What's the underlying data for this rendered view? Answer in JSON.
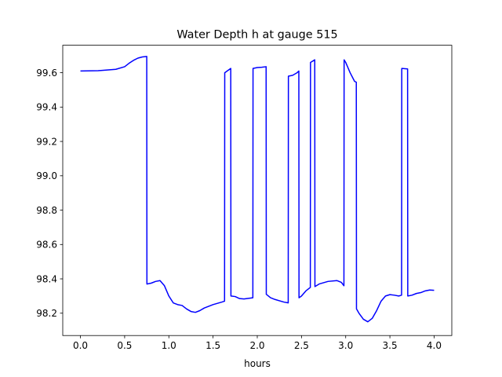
{
  "chart_data": {
    "type": "line",
    "title": "Water Depth h at gauge 515",
    "xlabel": "hours",
    "ylabel": "",
    "xlim": [
      -0.2,
      4.2
    ],
    "ylim": [
      98.07,
      99.76
    ],
    "x_ticks": [
      0.0,
      0.5,
      1.0,
      1.5,
      2.0,
      2.5,
      3.0,
      3.5,
      4.0
    ],
    "x_tick_labels": [
      "0.0",
      "0.5",
      "1.0",
      "1.5",
      "2.0",
      "2.5",
      "3.0",
      "3.5",
      "4.0"
    ],
    "y_ticks": [
      98.2,
      98.4,
      98.6,
      98.8,
      99.0,
      99.2,
      99.4,
      99.6
    ],
    "y_tick_labels": [
      "98.2",
      "98.4",
      "98.6",
      "98.8",
      "99.0",
      "99.2",
      "99.4",
      "99.6"
    ],
    "grid": false,
    "series": [
      {
        "color": "#0000ff",
        "x": [
          0.0,
          0.2,
          0.4,
          0.5,
          0.55,
          0.6,
          0.65,
          0.7,
          0.75,
          0.752,
          0.8,
          0.85,
          0.9,
          0.95,
          1.0,
          1.05,
          1.1,
          1.15,
          1.2,
          1.25,
          1.3,
          1.35,
          1.4,
          1.5,
          1.6,
          1.63,
          1.632,
          1.7,
          1.702,
          1.75,
          1.8,
          1.85,
          1.95,
          1.952,
          2.0,
          2.05,
          2.1,
          2.102,
          2.15,
          2.2,
          2.3,
          2.35,
          2.352,
          2.4,
          2.45,
          2.47,
          2.472,
          2.5,
          2.55,
          2.6,
          2.602,
          2.65,
          2.652,
          2.7,
          2.8,
          2.9,
          2.95,
          2.98,
          2.982,
          3.0,
          3.05,
          3.1,
          3.12,
          3.122,
          3.15,
          3.2,
          3.25,
          3.3,
          3.35,
          3.4,
          3.45,
          3.5,
          3.55,
          3.6,
          3.632,
          3.634,
          3.7,
          3.702,
          3.75,
          3.8,
          3.85,
          3.9,
          3.95,
          4.0
        ],
        "y": [
          99.61,
          99.612,
          99.62,
          99.635,
          99.655,
          99.672,
          99.685,
          99.692,
          99.695,
          98.37,
          98.375,
          98.385,
          98.39,
          98.36,
          98.3,
          98.26,
          98.25,
          98.245,
          98.225,
          98.21,
          98.205,
          98.215,
          98.23,
          98.25,
          98.265,
          98.27,
          99.6,
          99.625,
          98.3,
          98.297,
          98.285,
          98.283,
          98.29,
          99.625,
          99.63,
          99.632,
          99.635,
          98.31,
          98.29,
          98.28,
          98.265,
          98.26,
          99.58,
          99.585,
          99.6,
          99.61,
          98.29,
          98.3,
          98.33,
          98.35,
          99.66,
          99.675,
          98.355,
          98.37,
          98.385,
          98.39,
          98.38,
          98.36,
          99.675,
          99.66,
          99.6,
          99.55,
          99.545,
          98.225,
          98.2,
          98.165,
          98.15,
          98.17,
          98.215,
          98.27,
          98.3,
          98.308,
          98.305,
          98.3,
          98.305,
          99.625,
          99.622,
          98.3,
          98.305,
          98.315,
          98.32,
          98.33,
          98.335,
          98.333
        ]
      }
    ]
  }
}
